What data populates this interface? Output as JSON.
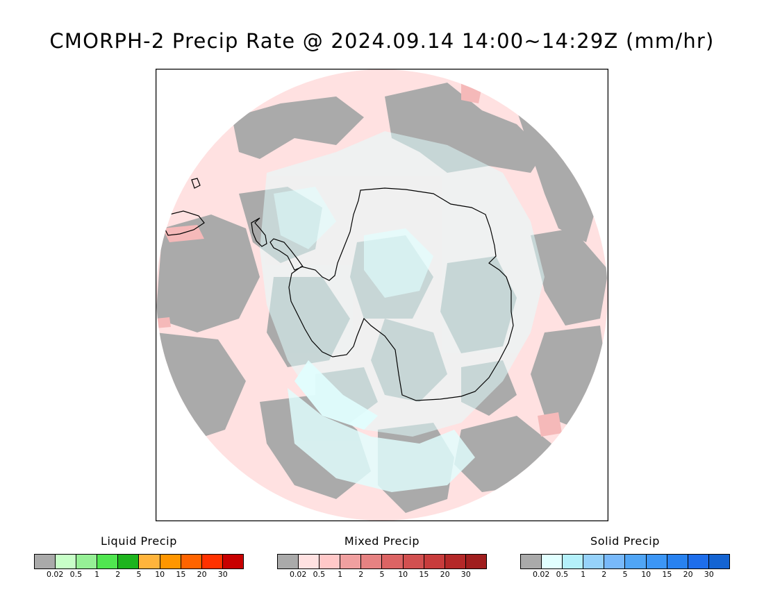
{
  "title": "CMORPH-2 Precip Rate @ 2024.09.14 14:00~14:29Z (mm/hr)",
  "map": {
    "projection": "south-polar-stereographic",
    "colors": {
      "no_precip": "#aaaaaa",
      "mixed_light": "#ffe1e1",
      "solid_light": "#e1ffff",
      "solid_light2": "#c8f2fa",
      "coast": "#000000"
    }
  },
  "legends": [
    {
      "title": "Liquid Precip",
      "colors": [
        "#aaaaaa",
        "#c8ffc8",
        "#96f096",
        "#50e650",
        "#1eb41e",
        "#ffb43c",
        "#ff9600",
        "#ff6400",
        "#ff3200",
        "#c80000"
      ],
      "ticks": [
        "0.02",
        "0.5",
        "1",
        "2",
        "5",
        "10",
        "15",
        "20",
        "30"
      ]
    },
    {
      "title": "Mixed Precip",
      "colors": [
        "#aaaaaa",
        "#ffe1e1",
        "#ffc8c8",
        "#f0a0a0",
        "#e68282",
        "#dc6464",
        "#d25050",
        "#c83c3c",
        "#b42828",
        "#a01e1e"
      ],
      "ticks": [
        "0.02",
        "0.5",
        "1",
        "2",
        "5",
        "10",
        "15",
        "20",
        "30"
      ]
    },
    {
      "title": "Solid Precip",
      "colors": [
        "#aaaaaa",
        "#e1ffff",
        "#b4f0fa",
        "#96d2fa",
        "#78b9fa",
        "#50a5f5",
        "#3c96f5",
        "#2882f0",
        "#1e6eeb",
        "#1464d2"
      ],
      "ticks": [
        "0.02",
        "0.5",
        "1",
        "2",
        "5",
        "10",
        "15",
        "20",
        "30"
      ]
    }
  ]
}
